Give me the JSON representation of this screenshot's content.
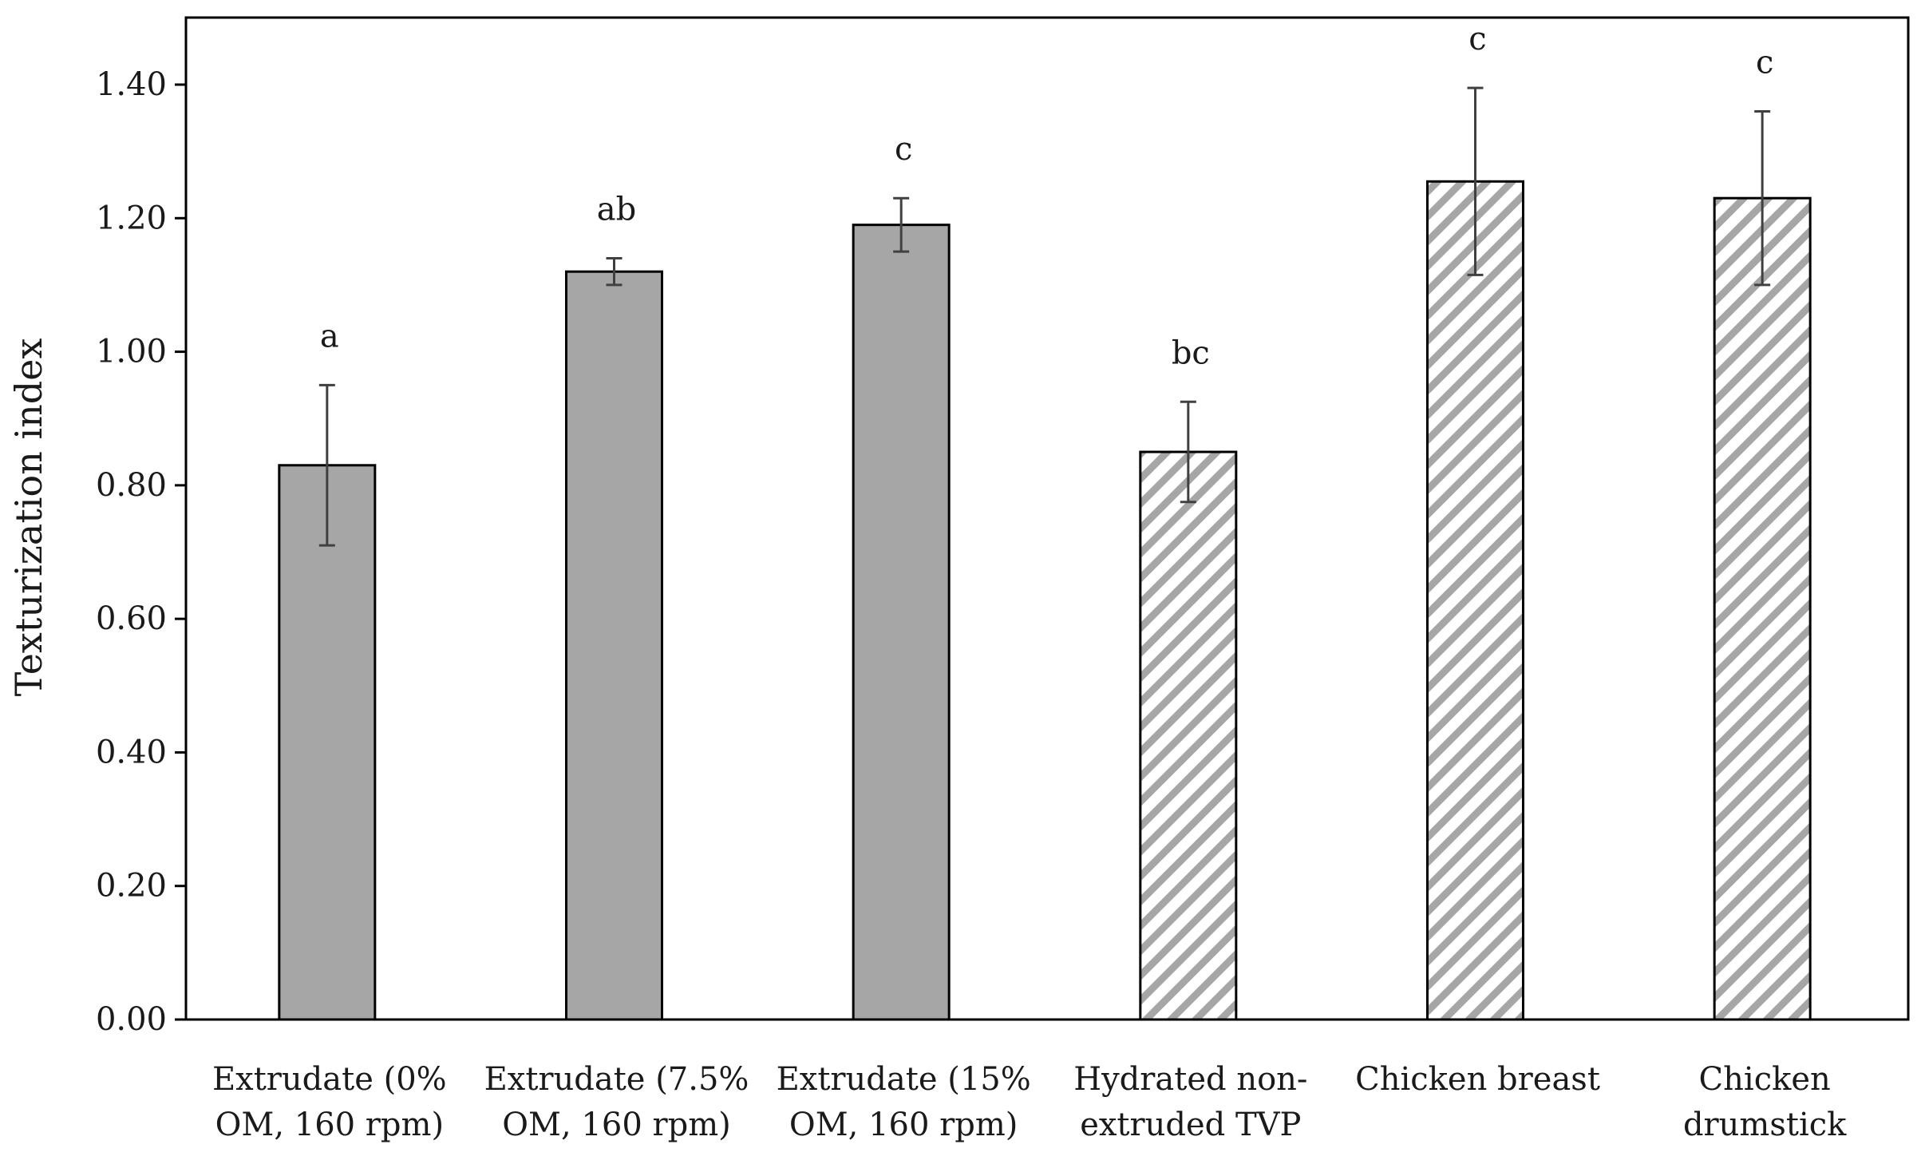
{
  "chart_data": {
    "type": "bar",
    "ylabel": "Texturization index",
    "ylim": [
      0,
      1.5
    ],
    "yticks": [
      "0.00",
      "0.20",
      "0.40",
      "0.60",
      "0.80",
      "1.00",
      "1.20",
      "1.40"
    ],
    "ytick_values": [
      0,
      0.2,
      0.4,
      0.6,
      0.8,
      1.0,
      1.2,
      1.4
    ],
    "categories": [
      [
        "Extrudate (0%",
        "OM, 160 rpm)"
      ],
      [
        "Extrudate (7.5%",
        "OM, 160 rpm)"
      ],
      [
        "Extrudate (15%",
        "OM, 160 rpm)"
      ],
      [
        "Hydrated non-",
        "extruded TVP"
      ],
      [
        "Chicken breast"
      ],
      [
        "Chicken",
        "drumstick"
      ]
    ],
    "values": [
      0.83,
      1.12,
      1.19,
      0.85,
      1.255,
      1.23
    ],
    "errors": [
      0.12,
      0.02,
      0.04,
      0.075,
      0.14,
      0.13
    ],
    "significance": [
      "a",
      "ab",
      "c",
      "bc",
      "c",
      "c"
    ],
    "fill_styles": [
      "solid",
      "solid",
      "solid",
      "hatched",
      "hatched",
      "hatched"
    ],
    "grid": false,
    "legend": "none"
  },
  "colors": {
    "solid_fill": "#a6a6a6",
    "hatch_stripe": "#a6a6a6",
    "hatch_background": "#ffffff",
    "bar_outline": "#000000",
    "axis": "#000000",
    "error_bar": "#404040"
  }
}
